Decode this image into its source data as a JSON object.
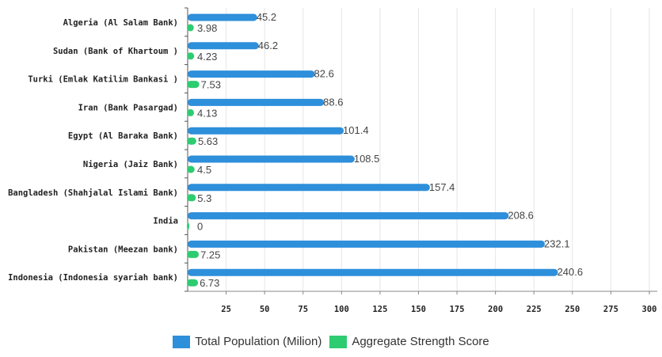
{
  "chart_data": {
    "type": "bar",
    "orientation": "horizontal",
    "categories": [
      "Algeria (Al Salam Bank)",
      "Sudan (Bank of Khartoum )",
      "Turki (Emlak Katilim Bankasi )",
      "Iran (Bank Pasargad)",
      "Egypt (Al Baraka Bank)",
      "Nigeria (Jaiz Bank)",
      "Bangladesh (Shahjalal Islami Bank)",
      "India",
      "Pakistan (Meezan bank)",
      "Indonesia (Indonesia syariah bank)"
    ],
    "series": [
      {
        "name": "Total Population (Milion)",
        "color": "#2e8fdb",
        "values": [
          45.2,
          46.2,
          82.6,
          88.6,
          101.4,
          108.5,
          157.4,
          208.6,
          232.1,
          240.6
        ],
        "labels": [
          "45.2",
          "46.2",
          "82.6",
          "88.6",
          "101.4",
          "108.5",
          "157.4",
          "208.6",
          "232.1",
          "240.6"
        ]
      },
      {
        "name": "Aggregate Strength Score",
        "color": "#2ecc71",
        "values": [
          3.98,
          4.23,
          7.53,
          4.13,
          5.63,
          4.5,
          5.3,
          0,
          7.25,
          6.73
        ],
        "labels": [
          "3.98",
          "4.23",
          "7.53",
          "4.13",
          "5.63",
          "4.5",
          "5.3",
          "0",
          "7.25",
          "6.73"
        ]
      }
    ],
    "xlim": [
      0,
      300
    ],
    "xticks": [
      25,
      50,
      75,
      100,
      125,
      150,
      175,
      200,
      225,
      250,
      275,
      300
    ],
    "xtick_labels": [
      "25",
      "50",
      "75",
      "100",
      "125",
      "150",
      "175",
      "200",
      "225",
      "250",
      "275",
      "300"
    ],
    "grid": true,
    "legend_position": "bottom-center"
  }
}
